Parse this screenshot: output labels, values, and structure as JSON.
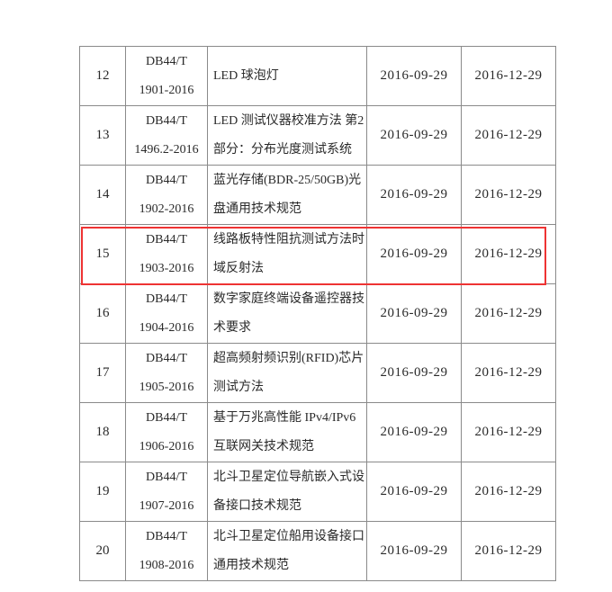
{
  "rows": [
    {
      "no": "12",
      "code1": "DB44/T",
      "code2": "1901-2016",
      "name": "LED 球泡灯",
      "publish": "2016-09-29",
      "implement": "2016-12-29"
    },
    {
      "no": "13",
      "code1": "DB44/T",
      "code2": "1496.2-2016",
      "name": "LED 测试仪器校准方法 第2部分：分布光度测试系统",
      "publish": "2016-09-29",
      "implement": "2016-12-29"
    },
    {
      "no": "14",
      "code1": "DB44/T",
      "code2": "1902-2016",
      "name": "蓝光存储(BDR-25/50GB)光盘通用技术规范",
      "publish": "2016-09-29",
      "implement": "2016-12-29"
    },
    {
      "no": "15",
      "code1": "DB44/T",
      "code2": "1903-2016",
      "name": "线路板特性阻抗测试方法时域反射法",
      "publish": "2016-09-29",
      "implement": "2016-12-29"
    },
    {
      "no": "16",
      "code1": "DB44/T",
      "code2": "1904-2016",
      "name": "数字家庭终端设备遥控器技术要求",
      "publish": "2016-09-29",
      "implement": "2016-12-29"
    },
    {
      "no": "17",
      "code1": "DB44/T",
      "code2": "1905-2016",
      "name": "超高频射频识别(RFID)芯片测试方法",
      "publish": "2016-09-29",
      "implement": "2016-12-29"
    },
    {
      "no": "18",
      "code1": "DB44/T",
      "code2": "1906-2016",
      "name": "基于万兆高性能 IPv4/IPv6互联网关技术规范",
      "publish": "2016-09-29",
      "implement": "2016-12-29"
    },
    {
      "no": "19",
      "code1": "DB44/T",
      "code2": "1907-2016",
      "name": "北斗卫星定位导航嵌入式设备接口技术规范",
      "publish": "2016-09-29",
      "implement": "2016-12-29"
    },
    {
      "no": "20",
      "code1": "DB44/T",
      "code2": "1908-2016",
      "name": "北斗卫星定位船用设备接口通用技术规范",
      "publish": "2016-09-29",
      "implement": "2016-12-29"
    }
  ],
  "highlight_color": "#ee3333",
  "highlighted_row": "15"
}
